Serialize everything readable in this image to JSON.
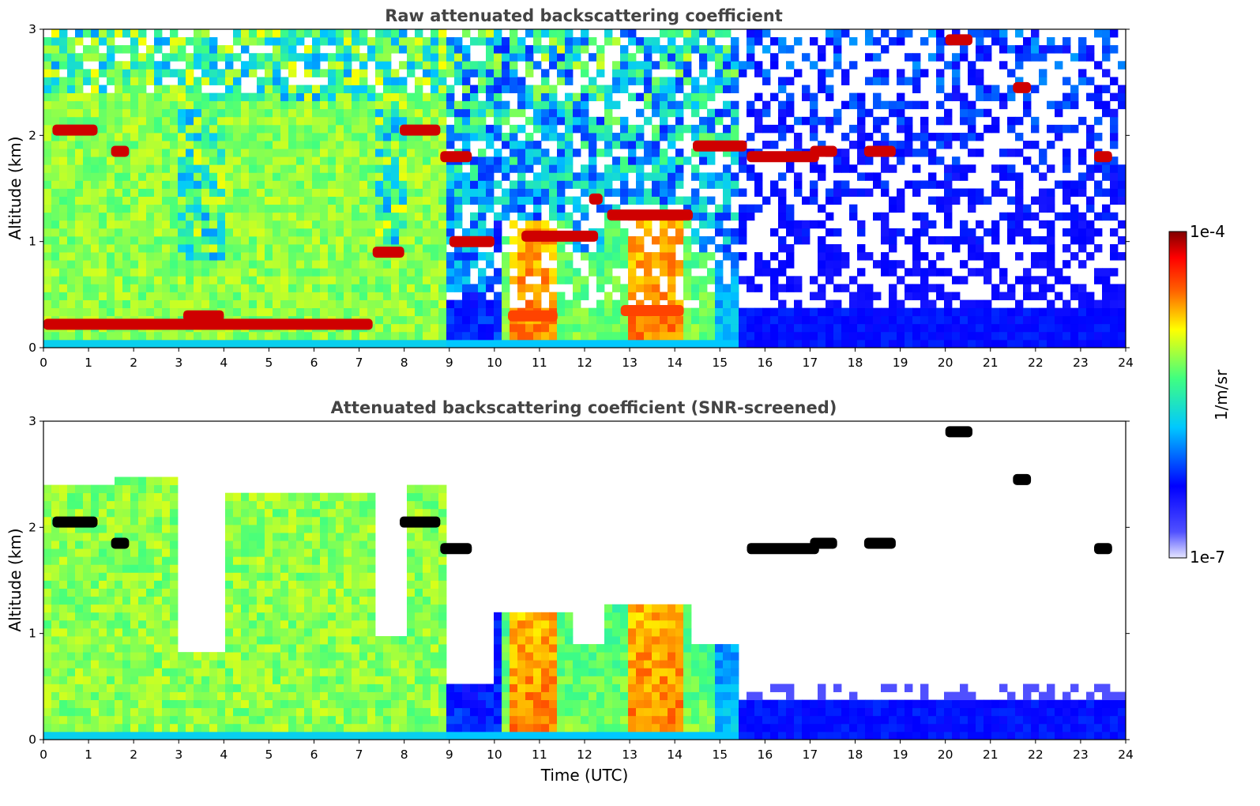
{
  "chart_data": [
    {
      "type": "heatmap",
      "title": "Raw attenuated backscattering coefficient",
      "xlabel": "",
      "ylabel": "Altitude (km)",
      "xlim": [
        0,
        24
      ],
      "ylim": [
        0,
        3
      ],
      "xticks": [
        "0",
        "1",
        "2",
        "3",
        "4",
        "5",
        "6",
        "7",
        "8",
        "9",
        "10",
        "11",
        "12",
        "13",
        "14",
        "15",
        "16",
        "17",
        "18",
        "19",
        "20",
        "21",
        "22",
        "23",
        "24"
      ],
      "yticks": [
        "0",
        "1",
        "2",
        "3"
      ],
      "clouds": [
        {
          "t0": 0.2,
          "t1": 1.2,
          "z": 2.05,
          "level": 0.95
        },
        {
          "t0": 1.5,
          "t1": 1.9,
          "z": 1.85,
          "level": 0.95
        },
        {
          "t0": 0.0,
          "t1": 7.3,
          "z": 0.22,
          "level": 0.95
        },
        {
          "t0": 3.1,
          "t1": 4.0,
          "z": 0.3,
          "level": 0.95
        },
        {
          "t0": 7.3,
          "t1": 8.0,
          "z": 0.9,
          "level": 0.95
        },
        {
          "t0": 7.9,
          "t1": 8.8,
          "z": 2.05,
          "level": 0.95
        },
        {
          "t0": 8.8,
          "t1": 9.5,
          "z": 1.8,
          "level": 0.95
        },
        {
          "t0": 9.0,
          "t1": 10.0,
          "z": 1.0,
          "level": 0.95
        },
        {
          "t0": 10.6,
          "t1": 12.3,
          "z": 1.05,
          "level": 0.95
        },
        {
          "t0": 12.1,
          "t1": 12.4,
          "z": 1.4,
          "level": 0.95
        },
        {
          "t0": 12.5,
          "t1": 14.4,
          "z": 1.25,
          "level": 0.95
        },
        {
          "t0": 14.4,
          "t1": 15.6,
          "z": 1.9,
          "level": 0.95
        },
        {
          "t0": 15.6,
          "t1": 17.2,
          "z": 1.8,
          "level": 0.95
        },
        {
          "t0": 17.0,
          "t1": 17.6,
          "z": 1.85,
          "level": 0.95
        },
        {
          "t0": 18.2,
          "t1": 18.9,
          "z": 1.85,
          "level": 0.95
        },
        {
          "t0": 20.0,
          "t1": 20.6,
          "z": 2.9,
          "level": 0.95
        },
        {
          "t0": 21.5,
          "t1": 21.9,
          "z": 2.45,
          "level": 0.95
        },
        {
          "t0": 23.3,
          "t1": 23.7,
          "z": 1.8,
          "level": 0.95
        },
        {
          "t0": 10.3,
          "t1": 11.4,
          "z": 0.3,
          "level": 0.85
        },
        {
          "t0": 12.8,
          "t1": 14.2,
          "z": 0.35,
          "level": 0.85
        }
      ]
    },
    {
      "type": "heatmap",
      "title": "Attenuated backscattering coefficient (SNR-screened)",
      "xlabel": "Time (UTC)",
      "ylabel": "Altitude (km)",
      "xlim": [
        0,
        24
      ],
      "ylim": [
        0,
        3
      ],
      "xticks": [
        "0",
        "1",
        "2",
        "3",
        "4",
        "5",
        "6",
        "7",
        "8",
        "9",
        "10",
        "11",
        "12",
        "13",
        "14",
        "15",
        "16",
        "17",
        "18",
        "19",
        "20",
        "21",
        "22",
        "23",
        "24"
      ],
      "yticks": [
        "0",
        "1",
        "2",
        "3"
      ],
      "clouds": [
        {
          "t0": 0.2,
          "t1": 1.2,
          "z": 2.05,
          "level": 0.95
        },
        {
          "t0": 1.5,
          "t1": 1.9,
          "z": 1.85,
          "level": 0.95
        },
        {
          "t0": 7.9,
          "t1": 8.8,
          "z": 2.05,
          "level": 0.95
        },
        {
          "t0": 8.8,
          "t1": 9.5,
          "z": 1.8,
          "level": 0.95
        },
        {
          "t0": 15.6,
          "t1": 17.2,
          "z": 1.8,
          "level": 0.95
        },
        {
          "t0": 17.0,
          "t1": 17.6,
          "z": 1.85,
          "level": 0.95
        },
        {
          "t0": 18.2,
          "t1": 18.9,
          "z": 1.85,
          "level": 0.95
        },
        {
          "t0": 20.0,
          "t1": 20.6,
          "z": 2.9,
          "level": 0.95
        },
        {
          "t0": 21.5,
          "t1": 21.9,
          "z": 2.45,
          "level": 0.95
        },
        {
          "t0": 23.3,
          "t1": 23.7,
          "z": 1.8,
          "level": 0.95
        }
      ]
    }
  ],
  "colorbar": {
    "max_label": "1e-4",
    "min_label": "1e-7",
    "unit_label": "1/m/sr",
    "colormap": [
      "#e6e6ff",
      "#0000ff",
      "#00c8ff",
      "#40ff80",
      "#ffff00",
      "#ff6000",
      "#ff0000",
      "#800000"
    ]
  }
}
